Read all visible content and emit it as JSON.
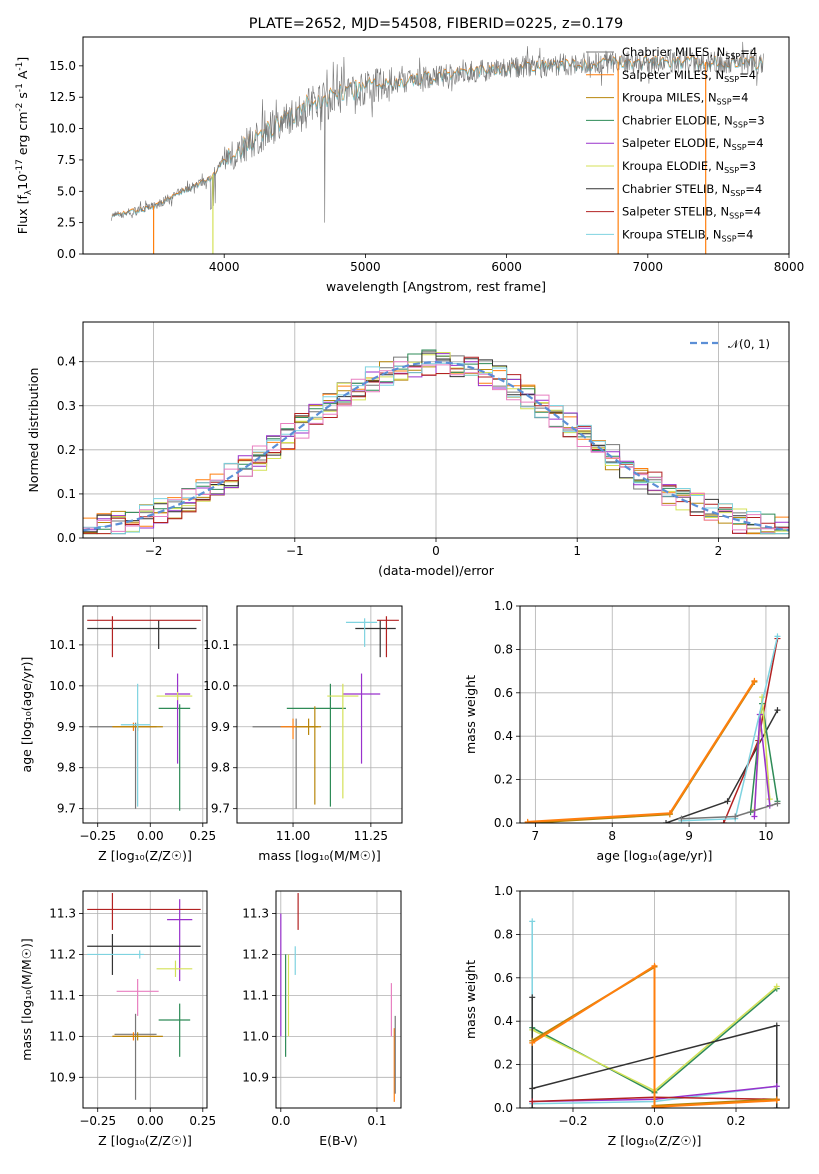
{
  "title": "PLATE=2652, MJD=54508, FIBERID=0225, z=0.179",
  "models": [
    {
      "name": "Chabrier MILES",
      "nssp": "4",
      "color": "#777777"
    },
    {
      "name": "Salpeter MILES",
      "nssp": "4",
      "color": "#ff7f0e"
    },
    {
      "name": "Kroupa MILES",
      "nssp": "4",
      "color": "#b8860b"
    },
    {
      "name": "Chabrier ELODIE",
      "nssp": "3",
      "color": "#2e8b57"
    },
    {
      "name": "Salpeter ELODIE",
      "nssp": "4",
      "color": "#9932cc"
    },
    {
      "name": "Kroupa ELODIE",
      "nssp": "3",
      "color": "#d4e157"
    },
    {
      "name": "Chabrier STELIB",
      "nssp": "4",
      "color": "#333333"
    },
    {
      "name": "Salpeter STELIB",
      "nssp": "4",
      "color": "#b22222"
    },
    {
      "name": "Kroupa STELIB",
      "nssp": "4",
      "color": "#7fd3e0"
    }
  ],
  "chart_data": [
    {
      "type": "line",
      "xlabel": "wavelength [Angstrom, rest frame]",
      "ylabel_main": "Flux [f",
      "ylabel_sub1": "λ",
      "ylabel_mid": "10",
      "ylabel_sup1": "-17",
      "ylabel_rest": " erg cm",
      "ylabel_sup2": "-2",
      "ylabel_rest2": " s",
      "ylabel_sup3": "-1",
      "ylabel_rest3": " A",
      "ylabel_sup4": "-1",
      "ylabel_end": "]",
      "xlim": [
        3000,
        8000
      ],
      "ylim": [
        0,
        17.3
      ],
      "xticks": [
        "4000",
        "5000",
        "6000",
        "7000",
        "8000"
      ],
      "yticks": [
        "0.0",
        "2.5",
        "5.0",
        "7.5",
        "10.0",
        "12.5",
        "15.0"
      ],
      "legend_nssp_label": "N",
      "legend_nssp_sub": "SSP",
      "spectrum_anchor_x": [
        3200,
        3500,
        3700,
        3900,
        4000,
        4200,
        4400,
        4600,
        4800,
        5000,
        5200,
        5400,
        5600,
        5800,
        6000,
        6200,
        6400,
        6600,
        6800,
        7000,
        7200,
        7500,
        7800
      ],
      "spectrum_anchor_y": [
        3.0,
        3.8,
        5.0,
        6.0,
        7.5,
        9.0,
        10.5,
        12.0,
        12.8,
        13.3,
        13.6,
        14.0,
        14.3,
        14.6,
        14.8,
        15.0,
        15.1,
        15.2,
        15.3,
        15.3,
        15.3,
        15.3,
        15.2
      ],
      "model_cutoffs": [
        3500,
        3920,
        6790,
        7410
      ]
    },
    {
      "type": "histogram",
      "xlabel": "(data-model)/error",
      "ylabel": "Normed distribution",
      "xlim": [
        -2.5,
        2.5
      ],
      "ylim": [
        0,
        0.49
      ],
      "xticks": [
        "−2",
        "−1",
        "0",
        "1",
        "2"
      ],
      "yticks": [
        "0.0",
        "0.1",
        "0.2",
        "0.3",
        "0.4"
      ],
      "bin_edges_start": -2.5,
      "bin_width": 0.1,
      "gaussian_legend": "𝒩(0, 1)",
      "gaussian_color": "#5b8fd6"
    },
    {
      "type": "scatter",
      "xlabel": "Z [log₁₀(Z/Z☉)]",
      "ylabel": "age  [log₁₀(age/yr)]",
      "xlim": [
        -0.32,
        0.27
      ],
      "ylim": [
        9.665,
        10.195
      ],
      "xticks": [
        "−0.25",
        "0.00",
        "0.25"
      ],
      "yticks": [
        "9.7",
        "9.8",
        "9.9",
        "10.0",
        "10.1"
      ],
      "points": [
        {
          "model": 0,
          "x": -0.07,
          "y": 9.9,
          "xerr": [
            0.22,
            0.1
          ],
          "yerr": [
            0.2,
            0.01
          ]
        },
        {
          "model": 1,
          "x": -0.08,
          "y": 9.9,
          "xerr": [
            0.1,
            0.1
          ],
          "yerr": [
            0.01,
            0.01
          ]
        },
        {
          "model": 2,
          "x": -0.06,
          "y": 9.9,
          "xerr": [
            0.12,
            0.12
          ],
          "yerr": [
            0.01,
            0.01
          ]
        },
        {
          "model": 3,
          "x": 0.14,
          "y": 9.945,
          "xerr": [
            0.1,
            0.05
          ],
          "yerr": [
            0.25,
            0.01
          ]
        },
        {
          "model": 4,
          "x": 0.13,
          "y": 9.98,
          "xerr": [
            0.06,
            0.06
          ],
          "yerr": [
            0.17,
            0.05
          ]
        },
        {
          "model": 5,
          "x": 0.13,
          "y": 9.975,
          "xerr": [
            0.1,
            0.07
          ],
          "yerr": [
            0.01,
            0.01
          ]
        },
        {
          "model": 6,
          "x": 0.04,
          "y": 10.14,
          "xerr": [
            0.34,
            0.18
          ],
          "yerr": [
            0.05,
            0.02
          ]
        },
        {
          "model": 7,
          "x": -0.18,
          "y": 10.16,
          "xerr": [
            0.12,
            0.42
          ],
          "yerr": [
            0.09,
            0.01
          ]
        },
        {
          "model": 8,
          "x": -0.06,
          "y": 9.905,
          "xerr": [
            0.08,
            0.06
          ],
          "yerr": [
            0.2,
            0.1
          ]
        }
      ]
    },
    {
      "type": "scatter",
      "xlabel": "mass [log₁₀(M/M☉)]",
      "ylabel": "",
      "xlim": [
        10.82,
        11.35
      ],
      "ylim": [
        9.665,
        10.195
      ],
      "xticks": [
        "11.00",
        "11.25"
      ],
      "yticks": [
        "9.7",
        "9.8",
        "9.9",
        "10.0",
        "10.1"
      ],
      "points": [
        {
          "model": 0,
          "x": 11.01,
          "y": 9.9,
          "xerr": [
            0.14,
            0.06
          ],
          "yerr": [
            0.2,
            0.02
          ]
        },
        {
          "model": 1,
          "x": 11.0,
          "y": 9.9,
          "xerr": [
            0.04,
            0.06
          ],
          "yerr": [
            0.03,
            0.02
          ]
        },
        {
          "model": 2,
          "x": 11.05,
          "y": 9.9,
          "xerr": [
            0.04,
            0.04
          ],
          "yerr": [
            0.02,
            0.02
          ]
        },
        {
          "model": 3,
          "x": 11.12,
          "y": 9.945,
          "xerr": [
            0.14,
            0.05
          ],
          "yerr": [
            0.24,
            0.06
          ]
        },
        {
          "model": 4,
          "x": 11.22,
          "y": 9.98,
          "xerr": [
            0.06,
            0.06
          ],
          "yerr": [
            0.17,
            0.05
          ]
        },
        {
          "model": 5,
          "x": 11.16,
          "y": 9.975,
          "xerr": [
            0.05,
            0.05
          ],
          "yerr": [
            0.25,
            0.03
          ]
        },
        {
          "model": 6,
          "x": 11.28,
          "y": 10.14,
          "xerr": [
            0.08,
            0.05
          ],
          "yerr": [
            0.07,
            0.02
          ]
        },
        {
          "model": 7,
          "x": 11.3,
          "y": 10.16,
          "xerr": [
            0.03,
            0.04
          ],
          "yerr": [
            0.09,
            0.01
          ]
        },
        {
          "model": 8,
          "x": 11.23,
          "y": 10.155,
          "xerr": [
            0.06,
            0.04
          ],
          "yerr": [
            0.06,
            0.01
          ]
        },
        {
          "model": 2,
          "x": 11.07,
          "y": 9.9,
          "xerr": [
            0.01,
            0.01
          ],
          "yerr": [
            0.19,
            0.05
          ]
        }
      ]
    },
    {
      "type": "line",
      "xlabel": "age  [log₁₀(age/yr)]",
      "ylabel": "mass weight",
      "xlim": [
        6.8,
        10.3
      ],
      "ylim": [
        0,
        1.0
      ],
      "xticks": [
        "7",
        "8",
        "9",
        "10"
      ],
      "yticks": [
        "0.0",
        "0.2",
        "0.4",
        "0.6",
        "0.8",
        "1.0"
      ],
      "series": [
        {
          "model": 6,
          "x": [
            8.7,
            9.5,
            10.15
          ],
          "y": [
            0.0,
            0.1,
            0.52
          ]
        },
        {
          "model": 7,
          "x": [
            9.45,
            9.9,
            10.15
          ],
          "y": [
            0.0,
            0.38,
            0.85
          ]
        },
        {
          "model": 3,
          "x": [
            9.8,
            9.95,
            10.15
          ],
          "y": [
            0.05,
            0.55,
            0.1
          ]
        },
        {
          "model": 5,
          "x": [
            9.85,
            9.95,
            10.05
          ],
          "y": [
            0.06,
            0.58,
            0.11
          ]
        },
        {
          "model": 4,
          "x": [
            9.85,
            9.92,
            10.05
          ],
          "y": [
            0.03,
            0.5,
            0.08
          ]
        },
        {
          "model": 8,
          "x": [
            8.9,
            9.6,
            10.15
          ],
          "y": [
            0.01,
            0.02,
            0.86
          ]
        },
        {
          "model": 0,
          "x": [
            8.9,
            9.6,
            10.15
          ],
          "y": [
            0.02,
            0.03,
            0.09
          ]
        },
        {
          "model": 2,
          "x": [
            6.9,
            8.75,
            9.85
          ],
          "y": [
            0.0,
            0.04,
            0.65
          ]
        },
        {
          "model": 1,
          "x": [
            6.9,
            8.75,
            9.85
          ],
          "y": [
            0.005,
            0.045,
            0.655
          ]
        }
      ]
    },
    {
      "type": "scatter",
      "xlabel": "Z [log₁₀(Z/Z☉)]",
      "ylabel": "mass [log₁₀(M/M☉)]",
      "xlim": [
        -0.32,
        0.27
      ],
      "ylim": [
        10.825,
        11.355
      ],
      "xticks": [
        "−0.25",
        "0.00",
        "0.25"
      ],
      "yticks": [
        "10.9",
        "11.0",
        "11.1",
        "11.2",
        "11.3"
      ],
      "points": [
        {
          "model": 0,
          "x": -0.07,
          "y": 11.005,
          "xerr": [
            0.1,
            0.1
          ],
          "yerr": [
            0.16,
            0.05
          ]
        },
        {
          "model": 1,
          "x": -0.08,
          "y": 11.0,
          "xerr": [
            0.1,
            0.1
          ],
          "yerr": [
            0.01,
            0.01
          ]
        },
        {
          "model": 2,
          "x": -0.06,
          "y": 11.0,
          "xerr": [
            0.12,
            0.12
          ],
          "yerr": [
            0.01,
            0.01
          ]
        },
        {
          "model": 3,
          "x": 0.14,
          "y": 11.04,
          "xerr": [
            0.1,
            0.05
          ],
          "yerr": [
            0.09,
            0.04
          ]
        },
        {
          "model": 4,
          "x": 0.14,
          "y": 11.285,
          "xerr": [
            0.06,
            0.06
          ],
          "yerr": [
            0.15,
            0.05
          ]
        },
        {
          "model": 5,
          "x": 0.12,
          "y": 11.165,
          "xerr": [
            0.09,
            0.08
          ],
          "yerr": [
            0.02,
            0.02
          ]
        },
        {
          "model": 6,
          "x": -0.18,
          "y": 11.22,
          "xerr": [
            0.12,
            0.42
          ],
          "yerr": [
            0.07,
            0.03
          ]
        },
        {
          "model": 7,
          "x": -0.18,
          "y": 11.31,
          "xerr": [
            0.12,
            0.42
          ],
          "yerr": [
            0.05,
            0.04
          ]
        },
        {
          "model": 8,
          "x": -0.05,
          "y": 11.2,
          "xerr": [
            0.25,
            0.02
          ],
          "yerr": [
            0.01,
            0.01
          ]
        },
        {
          "model": 9,
          "x": -0.06,
          "y": 11.11,
          "xerr": [
            0.1,
            0.1
          ],
          "yerr": [
            0.06,
            0.03
          ]
        }
      ]
    },
    {
      "type": "scatter",
      "xlabel": "E(B-V)",
      "ylabel": "",
      "xlim": [
        -0.005,
        0.125
      ],
      "ylim": [
        10.825,
        11.355
      ],
      "xticks": [
        "0.0",
        "0.1"
      ],
      "yticks": [
        "10.9",
        "11.0",
        "11.1",
        "11.2",
        "11.3"
      ],
      "points": [
        {
          "model": 4,
          "x": 0.0,
          "y": 11.2,
          "xerr": [
            0.0,
            0.0
          ],
          "yerr": [
            0.2,
            0.1
          ]
        },
        {
          "model": 3,
          "x": 0.005,
          "y": 11.0,
          "xerr": [
            0.0,
            0.0
          ],
          "yerr": [
            0.05,
            0.2
          ]
        },
        {
          "model": 5,
          "x": 0.008,
          "y": 11.1,
          "xerr": [
            0.0,
            0.0
          ],
          "yerr": [
            0.1,
            0.1
          ]
        },
        {
          "model": 8,
          "x": 0.015,
          "y": 11.2,
          "xerr": [
            0.0,
            0.0
          ],
          "yerr": [
            0.05,
            0.02
          ]
        },
        {
          "model": 7,
          "x": 0.018,
          "y": 11.31,
          "xerr": [
            0.0,
            0.0
          ],
          "yerr": [
            0.05,
            0.04
          ]
        },
        {
          "model": 9,
          "x": 0.115,
          "y": 11.05,
          "xerr": [
            0.0,
            0.0
          ],
          "yerr": [
            0.05,
            0.08
          ]
        },
        {
          "model": 1,
          "x": 0.118,
          "y": 11.0,
          "xerr": [
            0.0,
            0.0
          ],
          "yerr": [
            0.16,
            0.02
          ]
        },
        {
          "model": 0,
          "x": 0.119,
          "y": 11.0,
          "xerr": [
            0.0,
            0.0
          ],
          "yerr": [
            0.14,
            0.05
          ]
        }
      ]
    },
    {
      "type": "line",
      "xlabel": "Z [log₁₀(Z/Z☉)]",
      "ylabel": "mass weight",
      "xlim": [
        -0.33,
        0.33
      ],
      "ylim": [
        0,
        1.0
      ],
      "xticks": [
        "−0.2",
        "0.0",
        "0.2"
      ],
      "yticks": [
        "0.0",
        "0.2",
        "0.4",
        "0.6",
        "0.8",
        "1.0"
      ],
      "series": [
        {
          "model": 8,
          "x": [
            -0.3,
            -0.3,
            0.0,
            0.3
          ],
          "y": [
            0.86,
            0.02,
            0.03,
            0.1
          ]
        },
        {
          "model": 3,
          "x": [
            -0.3,
            0.0,
            0.3
          ],
          "y": [
            0.37,
            0.07,
            0.55
          ]
        },
        {
          "model": 5,
          "x": [
            -0.3,
            0.0,
            0.3
          ],
          "y": [
            0.36,
            0.08,
            0.56
          ]
        },
        {
          "model": 6,
          "x": [
            -0.3,
            0.3,
            0.3
          ],
          "y": [
            0.09,
            0.38,
            0.0
          ]
        },
        {
          "model": 6,
          "x": [
            -0.3,
            -0.3
          ],
          "y": [
            0.0,
            0.51
          ]
        },
        {
          "model": 4,
          "x": [
            -0.3,
            0.0,
            0.3
          ],
          "y": [
            0.03,
            0.04,
            0.1
          ]
        },
        {
          "model": 7,
          "x": [
            -0.3,
            0.0,
            0.3
          ],
          "y": [
            0.03,
            0.05,
            0.04
          ]
        },
        {
          "model": 2,
          "x": [
            -0.3,
            0.0,
            0.0,
            0.3
          ],
          "y": [
            0.31,
            0.65,
            0.01,
            0.04
          ]
        },
        {
          "model": 1,
          "x": [
            -0.3,
            0.0,
            0.0,
            0.3
          ],
          "y": [
            0.3,
            0.655,
            0.005,
            0.035
          ]
        }
      ]
    }
  ]
}
